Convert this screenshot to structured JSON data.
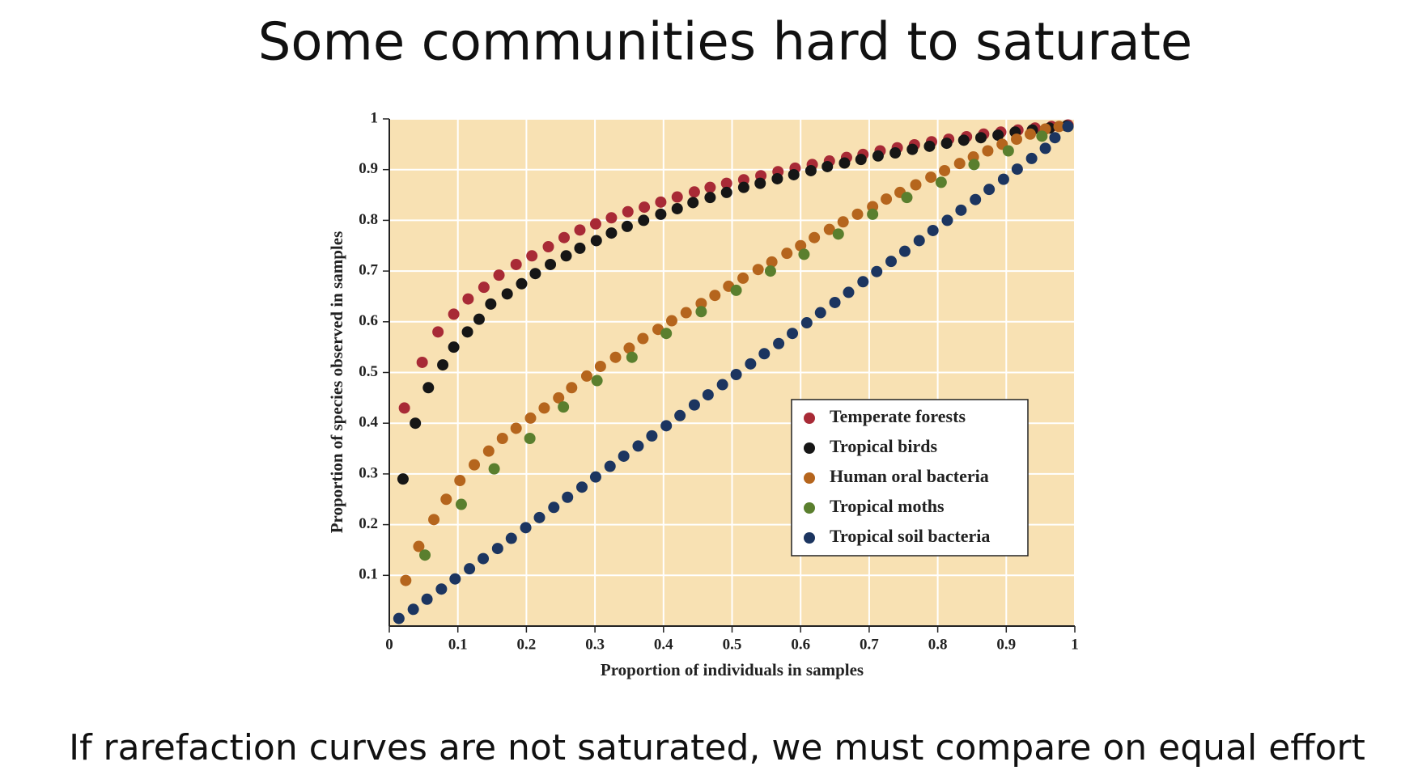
{
  "title": "Some communities hard to saturate",
  "footer": "If rarefaction curves are not saturated, we must compare on equal effort",
  "chart_data": {
    "type": "scatter",
    "xlabel": "Proportion of individuals in samples",
    "ylabel": "Proportion of species observed in samples",
    "xlim": [
      0,
      1
    ],
    "ylim": [
      0,
      1
    ],
    "xticks": [
      0,
      0.1,
      0.2,
      0.3,
      0.4,
      0.5,
      0.6,
      0.7,
      0.8,
      0.9,
      1
    ],
    "yticks": [
      0.1,
      0.2,
      0.3,
      0.4,
      0.5,
      0.6,
      0.7,
      0.8,
      0.9,
      1
    ],
    "grid": true,
    "legend": "lower right",
    "series": [
      {
        "name": "Temperate forests",
        "color": "#a82a36",
        "x": [
          0.022,
          0.048,
          0.071,
          0.094,
          0.115,
          0.138,
          0.16,
          0.185,
          0.208,
          0.232,
          0.255,
          0.278,
          0.301,
          0.324,
          0.348,
          0.372,
          0.396,
          0.42,
          0.445,
          0.468,
          0.492,
          0.517,
          0.542,
          0.567,
          0.592,
          0.617,
          0.642,
          0.667,
          0.691,
          0.716,
          0.741,
          0.766,
          0.791,
          0.816,
          0.842,
          0.867,
          0.892,
          0.917,
          0.942,
          0.966,
          0.99
        ],
        "values": [
          0.43,
          0.52,
          0.58,
          0.615,
          0.645,
          0.668,
          0.692,
          0.713,
          0.73,
          0.748,
          0.766,
          0.781,
          0.793,
          0.805,
          0.817,
          0.826,
          0.836,
          0.846,
          0.856,
          0.865,
          0.873,
          0.88,
          0.888,
          0.896,
          0.903,
          0.91,
          0.917,
          0.924,
          0.93,
          0.937,
          0.943,
          0.949,
          0.955,
          0.96,
          0.965,
          0.97,
          0.974,
          0.978,
          0.982,
          0.985,
          0.988
        ]
      },
      {
        "name": "Tropical birds",
        "color": "#161616",
        "x": [
          0.02,
          0.038,
          0.057,
          0.078,
          0.094,
          0.114,
          0.131,
          0.148,
          0.172,
          0.193,
          0.213,
          0.235,
          0.258,
          0.278,
          0.302,
          0.324,
          0.347,
          0.371,
          0.396,
          0.42,
          0.443,
          0.468,
          0.492,
          0.517,
          0.541,
          0.566,
          0.59,
          0.615,
          0.639,
          0.664,
          0.688,
          0.713,
          0.738,
          0.763,
          0.788,
          0.813,
          0.838,
          0.863,
          0.888,
          0.913,
          0.938,
          0.963,
          0.988
        ],
        "values": [
          0.29,
          0.4,
          0.47,
          0.515,
          0.55,
          0.58,
          0.605,
          0.635,
          0.655,
          0.675,
          0.695,
          0.713,
          0.73,
          0.745,
          0.76,
          0.775,
          0.788,
          0.8,
          0.812,
          0.823,
          0.835,
          0.845,
          0.855,
          0.865,
          0.873,
          0.882,
          0.89,
          0.898,
          0.906,
          0.913,
          0.92,
          0.927,
          0.933,
          0.94,
          0.946,
          0.952,
          0.958,
          0.963,
          0.968,
          0.974,
          0.978,
          0.982,
          0.986
        ]
      },
      {
        "name": "Human oral bacteria",
        "color": "#b5651d",
        "x": [
          0.024,
          0.043,
          0.065,
          0.083,
          0.103,
          0.124,
          0.145,
          0.165,
          0.185,
          0.206,
          0.226,
          0.247,
          0.266,
          0.288,
          0.308,
          0.33,
          0.35,
          0.37,
          0.392,
          0.412,
          0.433,
          0.455,
          0.475,
          0.495,
          0.516,
          0.538,
          0.558,
          0.58,
          0.6,
          0.62,
          0.642,
          0.662,
          0.683,
          0.705,
          0.725,
          0.745,
          0.768,
          0.79,
          0.81,
          0.832,
          0.852,
          0.873,
          0.894,
          0.915,
          0.935,
          0.957,
          0.977
        ],
        "values": [
          0.09,
          0.157,
          0.21,
          0.25,
          0.287,
          0.318,
          0.345,
          0.37,
          0.39,
          0.41,
          0.43,
          0.45,
          0.47,
          0.493,
          0.512,
          0.53,
          0.548,
          0.567,
          0.585,
          0.602,
          0.618,
          0.636,
          0.652,
          0.67,
          0.686,
          0.703,
          0.718,
          0.735,
          0.75,
          0.766,
          0.782,
          0.797,
          0.812,
          0.827,
          0.842,
          0.855,
          0.87,
          0.885,
          0.898,
          0.912,
          0.925,
          0.937,
          0.95,
          0.96,
          0.97,
          0.98,
          0.985
        ]
      },
      {
        "name": "Tropical moths",
        "color": "#5a7f2e",
        "x": [
          0.052,
          0.105,
          0.153,
          0.205,
          0.254,
          0.303,
          0.354,
          0.404,
          0.455,
          0.506,
          0.556,
          0.605,
          0.655,
          0.705,
          0.755,
          0.805,
          0.853,
          0.903,
          0.952
        ],
        "values": [
          0.14,
          0.24,
          0.31,
          0.37,
          0.432,
          0.484,
          0.53,
          0.577,
          0.62,
          0.662,
          0.7,
          0.733,
          0.773,
          0.812,
          0.845,
          0.875,
          0.91,
          0.937,
          0.966
        ]
      },
      {
        "name": "Tropical soil bacteria",
        "color": "#1c3560",
        "x": [
          0.014,
          0.035,
          0.055,
          0.076,
          0.096,
          0.117,
          0.137,
          0.158,
          0.178,
          0.199,
          0.219,
          0.24,
          0.26,
          0.281,
          0.301,
          0.322,
          0.342,
          0.363,
          0.383,
          0.404,
          0.424,
          0.445,
          0.465,
          0.486,
          0.506,
          0.527,
          0.547,
          0.568,
          0.588,
          0.609,
          0.629,
          0.65,
          0.67,
          0.691,
          0.711,
          0.732,
          0.752,
          0.773,
          0.793,
          0.814,
          0.834,
          0.855,
          0.875,
          0.896,
          0.916,
          0.937,
          0.957,
          0.971,
          0.99
        ],
        "values": [
          0.015,
          0.033,
          0.053,
          0.073,
          0.093,
          0.113,
          0.133,
          0.153,
          0.173,
          0.194,
          0.214,
          0.234,
          0.254,
          0.274,
          0.294,
          0.315,
          0.335,
          0.355,
          0.375,
          0.395,
          0.415,
          0.436,
          0.456,
          0.476,
          0.496,
          0.517,
          0.537,
          0.557,
          0.577,
          0.598,
          0.618,
          0.638,
          0.658,
          0.679,
          0.699,
          0.719,
          0.739,
          0.76,
          0.78,
          0.8,
          0.82,
          0.841,
          0.861,
          0.881,
          0.901,
          0.922,
          0.942,
          0.963,
          0.985
        ]
      }
    ]
  }
}
